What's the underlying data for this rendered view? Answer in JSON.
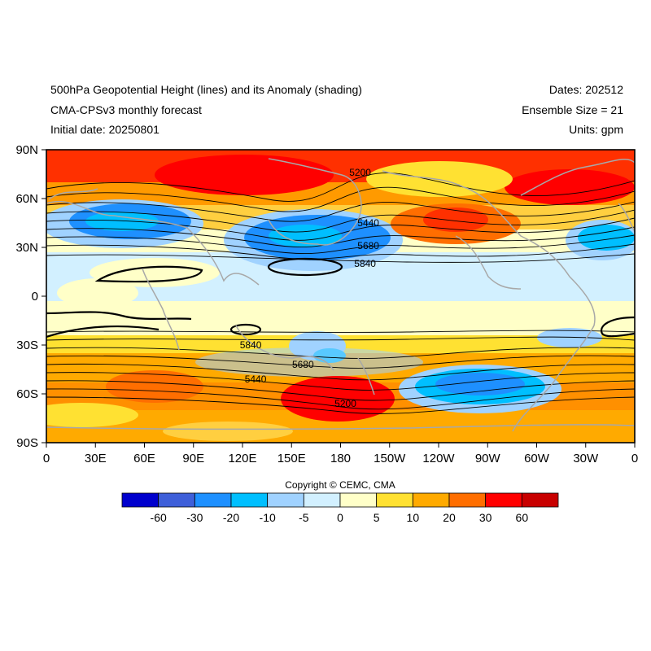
{
  "header": {
    "title": "500hPa Geopotential Height (lines) and its Anomaly (shading)",
    "model": "CMA-CPSv3 monthly forecast",
    "initial_date": "Initial date: 20250801",
    "dates": "Dates: 202512",
    "ensemble": "Ensemble Size = 21",
    "units": "Units: gpm"
  },
  "map": {
    "lat_ticks": [
      "90N",
      "60N",
      "30N",
      "0",
      "30S",
      "60S",
      "90S"
    ],
    "lon_ticks": [
      "0",
      "30E",
      "60E",
      "90E",
      "120E",
      "150E",
      "180",
      "150W",
      "120W",
      "90W",
      "60W",
      "30W",
      "0"
    ],
    "contour_labels": [
      {
        "text": "5200",
        "lon": 192,
        "lat": 76
      },
      {
        "text": "5440",
        "lon": 197,
        "lat": 45
      },
      {
        "text": "5680",
        "lon": 197,
        "lat": 31
      },
      {
        "text": "5840",
        "lon": 195,
        "lat": 20
      },
      {
        "text": "5840",
        "lon": 125,
        "lat": -30
      },
      {
        "text": "5680",
        "lon": 157,
        "lat": -42
      },
      {
        "text": "5440",
        "lon": 128,
        "lat": -51
      },
      {
        "text": "5200",
        "lon": 183,
        "lat": -66
      }
    ]
  },
  "copyright": "Copyright © CEMC, CMA",
  "colorbar": {
    "colors": [
      "#0000cd",
      "#3e5fd9",
      "#1e90ff",
      "#00bfff",
      "#a0d2ff",
      "#d2f0ff",
      "#ffffc8",
      "#ffe132",
      "#ffaa00",
      "#ff6e00",
      "#ff0000",
      "#c80000"
    ],
    "labels": [
      "-60",
      "-30",
      "-20",
      "-10",
      "-5",
      "0",
      "5",
      "10",
      "20",
      "30",
      "60"
    ]
  }
}
